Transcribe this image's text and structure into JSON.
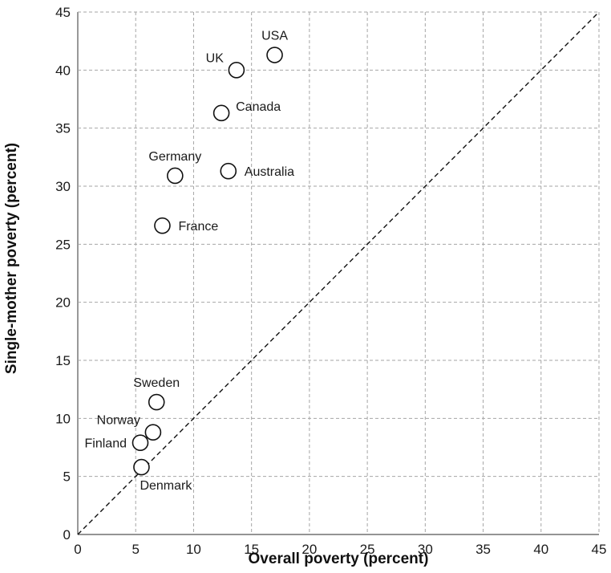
{
  "chart_data": {
    "type": "scatter",
    "title": "",
    "xlabel": "Overall poverty (percent)",
    "ylabel": "Single-mother poverty (percent)",
    "xlim": [
      0,
      45
    ],
    "ylim": [
      0,
      45
    ],
    "xticks": [
      "0",
      "5",
      "10",
      "15",
      "20",
      "25",
      "30",
      "35",
      "40",
      "45"
    ],
    "yticks": [
      "0",
      "5",
      "10",
      "15",
      "20",
      "25",
      "30",
      "35",
      "40",
      "45"
    ],
    "grid": true,
    "reference_line": {
      "style": "dashed",
      "from": [
        0,
        0
      ],
      "to": [
        45,
        45
      ]
    },
    "points": [
      {
        "label": "USA",
        "x": 17.0,
        "y": 41.3,
        "label_pos": "above"
      },
      {
        "label": "UK",
        "x": 13.7,
        "y": 40.0,
        "label_pos": "above-left"
      },
      {
        "label": "Canada",
        "x": 12.4,
        "y": 36.3,
        "label_pos": "above-right"
      },
      {
        "label": "Germany",
        "x": 8.4,
        "y": 30.9,
        "label_pos": "above"
      },
      {
        "label": "Australia",
        "x": 13.0,
        "y": 31.3,
        "label_pos": "right"
      },
      {
        "label": "France",
        "x": 7.3,
        "y": 26.6,
        "label_pos": "right"
      },
      {
        "label": "Sweden",
        "x": 6.8,
        "y": 11.4,
        "label_pos": "above"
      },
      {
        "label": "Norway",
        "x": 6.5,
        "y": 8.8,
        "label_pos": "above-left"
      },
      {
        "label": "Finland",
        "x": 5.4,
        "y": 7.9,
        "label_pos": "left"
      },
      {
        "label": "Denmark",
        "x": 5.5,
        "y": 5.8,
        "label_pos": "below"
      }
    ]
  }
}
